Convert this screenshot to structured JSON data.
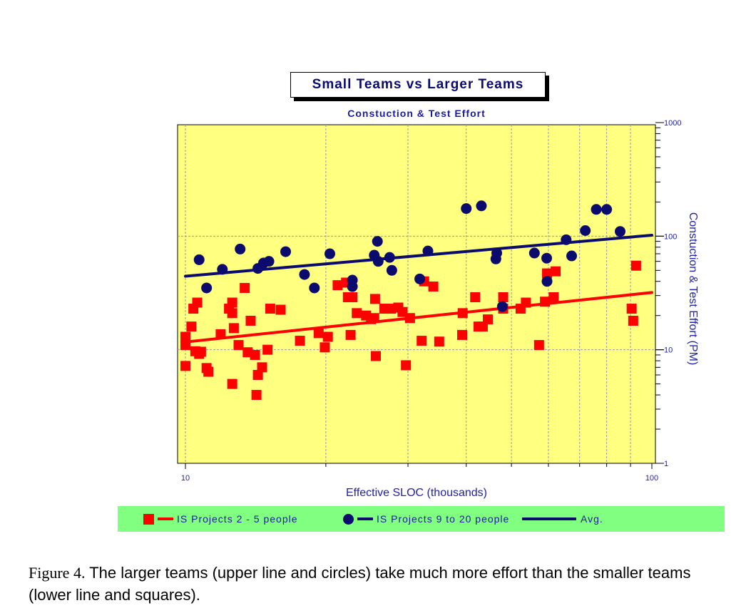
{
  "title": "Small Teams vs Larger Teams",
  "chart_data": {
    "type": "scatter",
    "title": "Small Teams vs Larger Teams",
    "subtitle": "Constuction & Test Effort",
    "xlabel": "Effective SLOC (thousands)",
    "ylabel": "Constuction & Test Effort (PM)",
    "xscale": "log",
    "yscale": "log",
    "xlim": [
      9.5,
      100
    ],
    "ylim": [
      1,
      1000
    ],
    "x_tick_labels": [
      "10",
      "100"
    ],
    "y_tick_labels": [
      "1000",
      "100",
      "10",
      "1"
    ],
    "grid": true,
    "background_color": "#ffff80",
    "legend_position": "bottom",
    "series": [
      {
        "name": "IS Projects 2 - 5 people",
        "marker": "square",
        "color": "#ff0000",
        "points": [
          [
            10,
            13
          ],
          [
            10,
            11
          ],
          [
            10,
            7.2
          ],
          [
            10.3,
            16
          ],
          [
            10.4,
            23
          ],
          [
            10.5,
            9.7
          ],
          [
            10.6,
            26
          ],
          [
            10.7,
            9.2
          ],
          [
            10.8,
            9.6
          ],
          [
            11.1,
            6.9
          ],
          [
            11.2,
            6.4
          ],
          [
            11.9,
            13.7
          ],
          [
            12.4,
            23
          ],
          [
            12.6,
            21
          ],
          [
            12.6,
            26
          ],
          [
            12.7,
            15.5
          ],
          [
            12.6,
            5
          ],
          [
            13,
            11
          ],
          [
            13.4,
            35
          ],
          [
            13.6,
            9.5
          ],
          [
            13.8,
            18
          ],
          [
            14.1,
            9
          ],
          [
            14.2,
            4
          ],
          [
            14.3,
            6
          ],
          [
            14.6,
            7
          ],
          [
            15,
            10
          ],
          [
            15.2,
            23
          ],
          [
            16,
            22.5
          ],
          [
            17.6,
            12
          ],
          [
            19.3,
            14
          ],
          [
            19.9,
            10.5
          ],
          [
            20.2,
            13
          ],
          [
            21.2,
            37
          ],
          [
            22.1,
            39
          ],
          [
            22.3,
            29
          ],
          [
            22.8,
            29
          ],
          [
            22.6,
            13.5
          ],
          [
            23.3,
            21
          ],
          [
            24.4,
            20
          ],
          [
            25,
            18.6
          ],
          [
            25.4,
            19
          ],
          [
            25.5,
            28
          ],
          [
            25.6,
            8.8
          ],
          [
            26.7,
            23
          ],
          [
            27.6,
            23
          ],
          [
            28.6,
            23.5
          ],
          [
            29.2,
            21.5
          ],
          [
            29.7,
            7.3
          ],
          [
            30.3,
            19
          ],
          [
            32.1,
            12
          ],
          [
            32.5,
            40
          ],
          [
            34,
            36
          ],
          [
            35,
            11.8
          ],
          [
            39.3,
            21
          ],
          [
            39.2,
            13.5
          ],
          [
            41.8,
            29
          ],
          [
            42.5,
            16
          ],
          [
            43.4,
            16
          ],
          [
            44.5,
            18.5
          ],
          [
            48,
            29
          ],
          [
            48,
            23
          ],
          [
            52.3,
            23
          ],
          [
            53.7,
            26
          ],
          [
            57.3,
            11
          ],
          [
            59,
            26.5
          ],
          [
            59.6,
            47
          ],
          [
            61.6,
            29
          ],
          [
            62.2,
            49
          ],
          [
            90.5,
            23
          ],
          [
            91.2,
            18
          ],
          [
            92.5,
            55
          ]
        ]
      },
      {
        "name": "IS Projects 9 to 20  people",
        "marker": "circle",
        "color": "#0b0b6e",
        "points": [
          [
            10.7,
            62
          ],
          [
            11.1,
            35
          ],
          [
            12,
            51
          ],
          [
            13.1,
            77
          ],
          [
            14.3,
            52
          ],
          [
            14.7,
            58
          ],
          [
            15.1,
            60
          ],
          [
            16.4,
            73
          ],
          [
            18,
            46
          ],
          [
            18.9,
            35
          ],
          [
            20.4,
            70
          ],
          [
            22.8,
            41
          ],
          [
            22.8,
            36
          ],
          [
            25.4,
            68
          ],
          [
            25.8,
            90
          ],
          [
            25.9,
            60
          ],
          [
            27.4,
            65
          ],
          [
            27.7,
            50
          ],
          [
            31.8,
            42
          ],
          [
            33.1,
            74
          ],
          [
            40,
            175
          ],
          [
            43.1,
            185
          ],
          [
            46.3,
            63
          ],
          [
            46.5,
            71
          ],
          [
            47.8,
            24
          ],
          [
            56,
            71
          ],
          [
            59.5,
            64
          ],
          [
            59.6,
            40
          ],
          [
            65.5,
            93
          ],
          [
            67.3,
            67
          ],
          [
            72,
            112
          ],
          [
            76,
            172
          ],
          [
            80,
            172
          ],
          [
            85.5,
            110
          ]
        ]
      }
    ],
    "trend_lines": [
      {
        "name": "IS Projects 2 - 5 people",
        "color": "#ff0000",
        "x": [
          10,
          100
        ],
        "y": [
          11.7,
          31.9
        ]
      },
      {
        "name": "Avg.",
        "color": "#0b0b6e",
        "x": [
          10,
          100
        ],
        "y": [
          44.4,
          102
        ]
      }
    ]
  },
  "legend": {
    "items": [
      {
        "label": "IS Projects 2 - 5 people",
        "color": "#ff0000"
      },
      {
        "label": "IS Projects 9 to 20  people",
        "color": "#0b0b6e"
      },
      {
        "label": "Avg.",
        "color": "#0b0b6e"
      }
    ]
  },
  "caption": {
    "figure_label": "Figure 4.",
    "text": " The larger teams (upper line and circles) take much more effort than the smaller teams (lower line and squares)."
  }
}
